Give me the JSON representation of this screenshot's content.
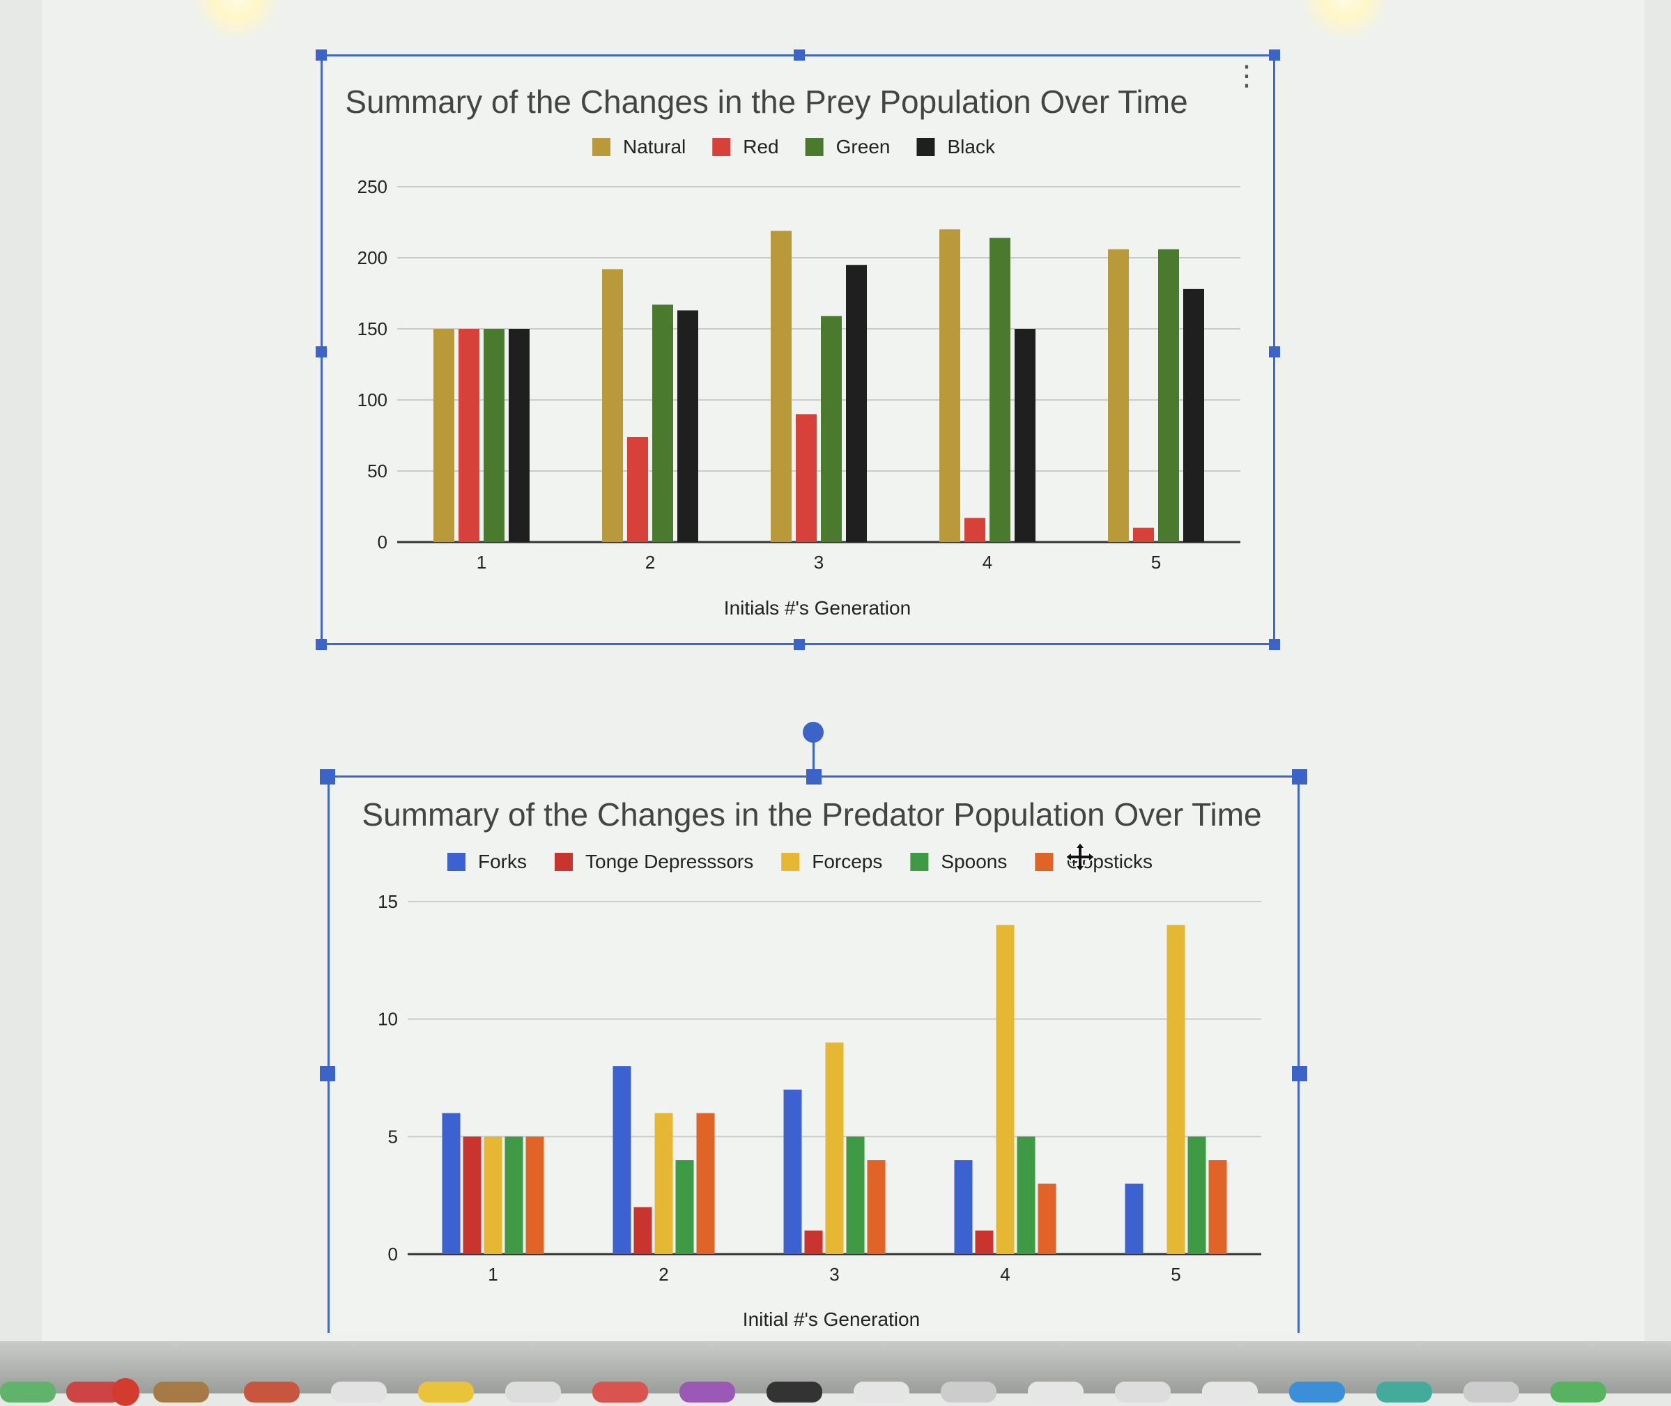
{
  "prey_chart": {
    "title": "Summary of the Changes in the Prey Population Over Time",
    "xlabel": "Initials #'s Generation",
    "legend": [
      "Natural",
      "Red",
      "Green",
      "Black"
    ]
  },
  "predator_chart": {
    "title": "Summary of the Changes in the Predator Population Over Time",
    "xlabel": "Initial #'s Generation",
    "legend": [
      "Forks",
      "Tonge Depresssors",
      "Forceps",
      "Spoons",
      "⊕opsticks"
    ]
  },
  "chart_data": [
    {
      "type": "bar",
      "title": "Summary of the Changes in the Prey Population Over Time",
      "xlabel": "Initials #'s Generation",
      "ylabel": "",
      "categories": [
        "1",
        "2",
        "3",
        "4",
        "5"
      ],
      "yticks": [
        "0",
        "50",
        "100",
        "150",
        "200",
        "250"
      ],
      "ylim": [
        0,
        250
      ],
      "grid": true,
      "legend_position": "top",
      "series": [
        {
          "name": "Natural",
          "color": "#b89a3a",
          "values": [
            150,
            192,
            219,
            220,
            206
          ]
        },
        {
          "name": "Red",
          "color": "#d8403a",
          "values": [
            150,
            74,
            90,
            17,
            10
          ]
        },
        {
          "name": "Green",
          "color": "#4a7a2e",
          "values": [
            150,
            167,
            159,
            214,
            206
          ]
        },
        {
          "name": "Black",
          "color": "#1f1f1f",
          "values": [
            150,
            163,
            195,
            150,
            178
          ]
        }
      ]
    },
    {
      "type": "bar",
      "title": "Summary of the Changes in the Predator Population Over Time",
      "xlabel": "Initial #'s Generation",
      "ylabel": "",
      "categories": [
        "1",
        "2",
        "3",
        "4",
        "5"
      ],
      "yticks": [
        "0",
        "5",
        "10",
        "15"
      ],
      "ylim": [
        0,
        15
      ],
      "grid": true,
      "legend_position": "top",
      "series": [
        {
          "name": "Forks",
          "color": "#3b62d0",
          "values": [
            6,
            8,
            7,
            4,
            3
          ]
        },
        {
          "name": "Tonge Depresssors",
          "color": "#c9352e",
          "values": [
            5,
            2,
            1,
            1,
            0
          ]
        },
        {
          "name": "Forceps",
          "color": "#e6b732",
          "values": [
            5,
            6,
            9,
            14,
            14
          ]
        },
        {
          "name": "Spoons",
          "color": "#3f9a46",
          "values": [
            5,
            4,
            5,
            5,
            5
          ]
        },
        {
          "name": "⊕opsticks",
          "color": "#e06428",
          "values": [
            5,
            6,
            4,
            3,
            4
          ]
        }
      ]
    }
  ]
}
